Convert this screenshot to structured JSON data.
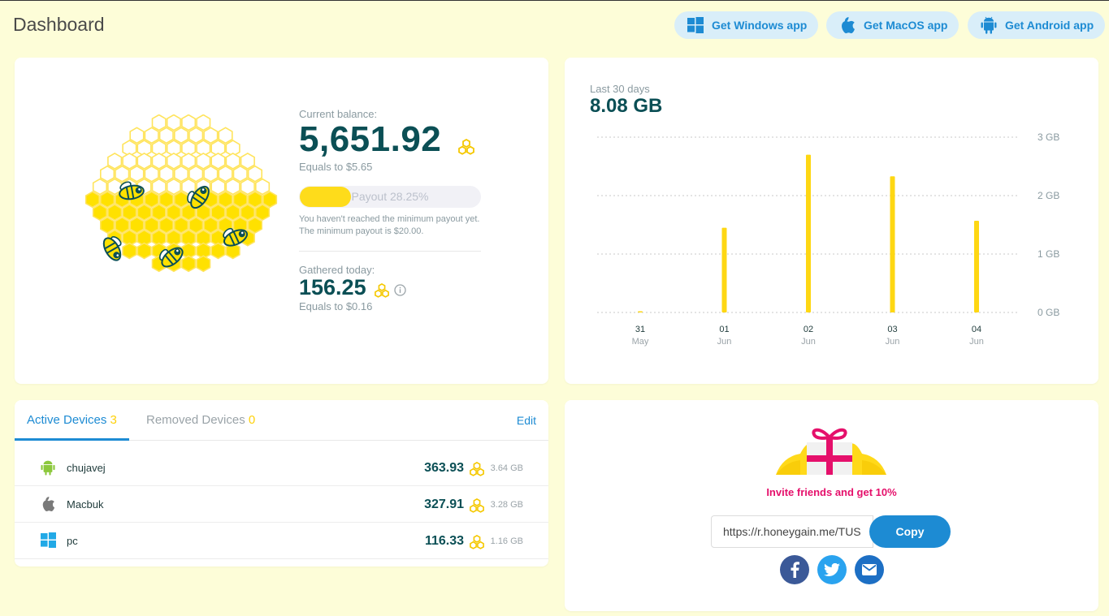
{
  "header": {
    "title": "Dashboard",
    "buttons": [
      {
        "label": "Get Windows app",
        "icon": "windows-icon"
      },
      {
        "label": "Get MacOS app",
        "icon": "apple-icon"
      },
      {
        "label": "Get Android app",
        "icon": "android-icon"
      }
    ]
  },
  "balance": {
    "label": "Current balance:",
    "value": "5,651.92",
    "equals": "Equals to $5.65",
    "payout_label": "Payout 28.25%",
    "payout_fraction": 0.2825,
    "payout_note": "You haven't reached the minimum payout yet. The minimum payout is $20.00.",
    "gathered_label": "Gathered today:",
    "gathered_value": "156.25",
    "gathered_equals": "Equals to $0.16"
  },
  "traffic": {
    "subtitle": "Last 30 days",
    "total": "8.08 GB"
  },
  "chart_data": {
    "type": "bar",
    "categories": [
      "31 May",
      "01 Jun",
      "02 Jun",
      "03 Jun",
      "04 Jun"
    ],
    "x_ticks": [
      {
        "day": "31",
        "month": "May"
      },
      {
        "day": "01",
        "month": "Jun"
      },
      {
        "day": "02",
        "month": "Jun"
      },
      {
        "day": "03",
        "month": "Jun"
      },
      {
        "day": "04",
        "month": "Jun"
      }
    ],
    "values": [
      0.02,
      1.45,
      2.7,
      2.33,
      1.57
    ],
    "y_ticks": [
      "0 GB",
      "1 GB",
      "2 GB",
      "3 GB"
    ],
    "ylim": [
      0,
      3
    ],
    "grid": true,
    "bar_color": "#fed713"
  },
  "devices": {
    "tabs": {
      "active_label": "Active Devices",
      "active_count": "3",
      "removed_label": "Removed Devices",
      "removed_count": "0"
    },
    "edit_label": "Edit",
    "rows": [
      {
        "name": "chujavej",
        "earned": "363.93",
        "traffic": "3.64 GB",
        "icon": "android-icon"
      },
      {
        "name": "Macbuk",
        "earned": "327.91",
        "traffic": "3.28 GB",
        "icon": "apple-icon"
      },
      {
        "name": "pc",
        "earned": "116.33",
        "traffic": "1.16 GB",
        "icon": "windows-icon"
      }
    ]
  },
  "invite": {
    "text": "Invite friends and get 10%",
    "link": "https://r.honeygain.me/TUS",
    "copy_label": "Copy",
    "socials": [
      "facebook-icon",
      "twitter-icon",
      "email-icon"
    ]
  },
  "colors": {
    "accent_blue": "#1d8bd3",
    "dark_teal": "#0b4f55",
    "honey_yellow": "#fedc1b",
    "invite_pink": "#e5106b",
    "background": "#fdfdd8"
  }
}
